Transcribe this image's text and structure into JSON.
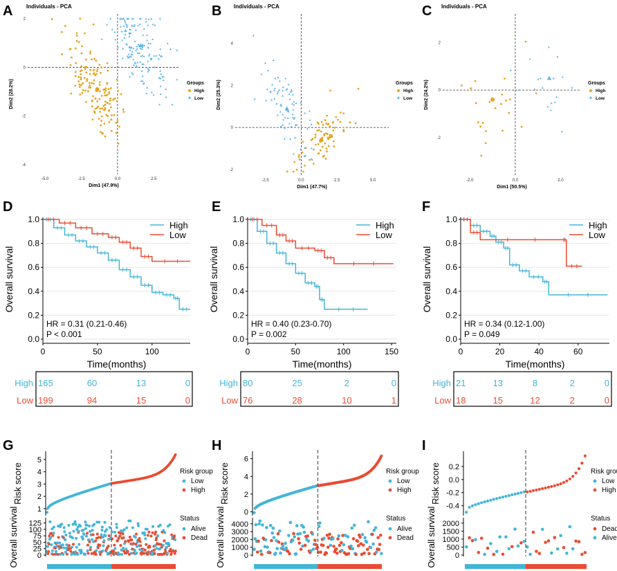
{
  "colors": {
    "high": "#EB4B32",
    "low": "#43B5D8",
    "pca_high": "#E8A21F",
    "pca_low": "#5BB5E5",
    "grid": "#E6E6E6",
    "dash": "#555555"
  },
  "pca": [
    {
      "panel": "A",
      "title": "Individuals - PCA",
      "xlabel": "Dim1 (47.9%)",
      "ylabel": "Dim2 (28.2%)",
      "xticks": [
        -5.0,
        -2.5,
        0.0,
        2.5
      ],
      "yticks": [
        2,
        0,
        -2,
        -4
      ],
      "xlim": [
        -6.2,
        4.3
      ],
      "ylim": [
        -4.4,
        2.2
      ],
      "legend_title": "Groups",
      "legend": [
        "High",
        "Low"
      ],
      "groups": [
        {
          "name": "High",
          "n": 160,
          "center": [
            -1.4,
            -0.9
          ],
          "cov": [
            [
              1.0,
              -0.75
            ],
            [
              -0.75,
              1.15
            ]
          ]
        },
        {
          "name": "Low",
          "n": 160,
          "center": [
            1.6,
            0.9
          ],
          "cov": [
            [
              0.9,
              -0.45
            ],
            [
              -0.45,
              0.85
            ]
          ]
        }
      ]
    },
    {
      "panel": "B",
      "title": "Individuals - PCA",
      "xlabel": "Dim1 (47.7%)",
      "ylabel": "Dim2 (25.3%)",
      "xticks": [
        -2.5,
        0.0,
        2.5,
        5.0
      ],
      "yticks": [
        4,
        2,
        0,
        -2
      ],
      "xlim": [
        -4.6,
        6.1
      ],
      "ylim": [
        -2.3,
        5.4
      ],
      "legend_title": "Groups",
      "legend": [
        "High",
        "Low"
      ],
      "groups": [
        {
          "name": "High",
          "n": 80,
          "center": [
            1.4,
            -0.6
          ],
          "cov": [
            [
              0.8,
              0.42
            ],
            [
              0.42,
              0.55
            ]
          ]
        },
        {
          "name": "Low",
          "n": 80,
          "center": [
            -1.0,
            0.9
          ],
          "cov": [
            [
              0.7,
              -0.6
            ],
            [
              -0.6,
              1.3
            ]
          ]
        }
      ]
    },
    {
      "panel": "C",
      "title": "Individuals - PCA",
      "xlabel": "Dim1 (50.5%)",
      "ylabel": "Dim2 (24.2%)",
      "xticks": [
        -2,
        0,
        2
      ],
      "yticks": [
        2,
        0,
        -2
      ],
      "xlim": [
        -3.2,
        2.9
      ],
      "ylim": [
        -3.6,
        3.2
      ],
      "legend_title": "Groups",
      "legend": [
        "High",
        "Low"
      ],
      "groups": [
        {
          "name": "High",
          "n": 22,
          "center": [
            -1.0,
            -0.4
          ],
          "cov": [
            [
              0.9,
              -0.15
            ],
            [
              -0.15,
              0.75
            ]
          ]
        },
        {
          "name": "Low",
          "n": 18,
          "center": [
            1.5,
            0.5
          ],
          "cov": [
            [
              0.35,
              0.05
            ],
            [
              0.05,
              1.2
            ]
          ]
        }
      ]
    }
  ],
  "km": [
    {
      "panel": "D",
      "ylabel": "Overall survival",
      "xlabel": "Time(months)",
      "xticks": [
        0,
        50,
        100
      ],
      "xmax": 135,
      "yticks": [
        "0.0",
        "0.2",
        "0.4",
        "0.6",
        "0.8",
        "1.0"
      ],
      "legend": [
        "High",
        "Low"
      ],
      "hr": "HR = 0.31 (0.21-0.46)",
      "p": "P < 0.001",
      "high": [
        [
          0,
          1.0
        ],
        [
          10,
          0.93
        ],
        [
          20,
          0.87
        ],
        [
          30,
          0.82
        ],
        [
          40,
          0.77
        ],
        [
          50,
          0.72
        ],
        [
          60,
          0.66
        ],
        [
          70,
          0.58
        ],
        [
          80,
          0.52
        ],
        [
          90,
          0.45
        ],
        [
          100,
          0.39
        ],
        [
          110,
          0.37
        ],
        [
          120,
          0.34
        ],
        [
          125,
          0.25
        ],
        [
          135,
          0.25
        ]
      ],
      "low": [
        [
          0,
          1.0
        ],
        [
          15,
          0.97
        ],
        [
          30,
          0.93
        ],
        [
          45,
          0.88
        ],
        [
          60,
          0.85
        ],
        [
          70,
          0.81
        ],
        [
          80,
          0.76
        ],
        [
          90,
          0.69
        ],
        [
          100,
          0.65
        ],
        [
          135,
          0.65
        ]
      ],
      "risk_table": {
        "rows": [
          "High",
          "Low"
        ],
        "high": [
          "165",
          "60",
          "13",
          "0"
        ],
        "low": [
          "199",
          "94",
          "15",
          "0"
        ]
      }
    },
    {
      "panel": "E",
      "ylabel": "Overall survival",
      "xlabel": "Time(months)",
      "xticks": [
        0,
        50,
        100,
        150
      ],
      "xmax": 155,
      "yticks": [
        "0.0",
        "0.2",
        "0.4",
        "0.6",
        "0.8",
        "1.0"
      ],
      "legend": [
        "High",
        "Low"
      ],
      "hr": "HR = 0.40 (0.23-0.70)",
      "p": "P = 0.002",
      "high": [
        [
          0,
          1.0
        ],
        [
          10,
          0.9
        ],
        [
          20,
          0.8
        ],
        [
          30,
          0.72
        ],
        [
          40,
          0.63
        ],
        [
          50,
          0.55
        ],
        [
          60,
          0.47
        ],
        [
          70,
          0.44
        ],
        [
          75,
          0.33
        ],
        [
          80,
          0.25
        ],
        [
          125,
          0.25
        ]
      ],
      "low": [
        [
          0,
          1.0
        ],
        [
          15,
          0.95
        ],
        [
          30,
          0.87
        ],
        [
          40,
          0.82
        ],
        [
          50,
          0.76
        ],
        [
          70,
          0.74
        ],
        [
          80,
          0.68
        ],
        [
          90,
          0.63
        ],
        [
          152,
          0.63
        ]
      ],
      "risk_table": {
        "rows": [
          "High",
          "Low"
        ],
        "high": [
          "80",
          "25",
          "2",
          "0"
        ],
        "low": [
          "76",
          "28",
          "10",
          "1"
        ]
      }
    },
    {
      "panel": "F",
      "ylabel": "Overall survival",
      "xlabel": "Time(months)",
      "xticks": [
        0,
        20,
        40,
        60
      ],
      "xmax": 76,
      "yticks": [
        "0.0",
        "0.2",
        "0.4",
        "0.6",
        "0.8",
        "1.0"
      ],
      "legend": [
        "High",
        "Low"
      ],
      "hr": "HR = 0.34 (0.12-1.00)",
      "p": "P = 0.049",
      "high": [
        [
          0,
          1.0
        ],
        [
          5,
          0.95
        ],
        [
          10,
          0.9
        ],
        [
          15,
          0.86
        ],
        [
          18,
          0.81
        ],
        [
          22,
          0.76
        ],
        [
          25,
          0.62
        ],
        [
          30,
          0.57
        ],
        [
          35,
          0.52
        ],
        [
          42,
          0.48
        ],
        [
          45,
          0.37
        ],
        [
          75,
          0.37
        ]
      ],
      "low": [
        [
          0,
          1.0
        ],
        [
          5,
          0.89
        ],
        [
          10,
          0.83
        ],
        [
          52,
          0.83
        ],
        [
          54,
          0.61
        ],
        [
          62,
          0.61
        ]
      ],
      "risk_table": {
        "rows": [
          "High",
          "Low"
        ],
        "high": [
          "21",
          "13",
          "8",
          "2",
          "0"
        ],
        "low": [
          "18",
          "15",
          "12",
          "2",
          "0"
        ]
      }
    }
  ],
  "risk": [
    {
      "panel": "G",
      "n_low": 182,
      "n_high": 182,
      "score_ylabel": "Risk score",
      "score_yticks": [
        1,
        2,
        3,
        4,
        5
      ],
      "score_ylim": [
        0.6,
        5.5
      ],
      "score_curve": {
        "start": 0.7,
        "low_end": 3.05,
        "high_end": 5.4
      },
      "legend1_title": "Risk group",
      "legend1": [
        "Low",
        "High"
      ],
      "surv_ylabel": "Overall survival",
      "surv_yticks": [
        0,
        25,
        50,
        75,
        100,
        125
      ],
      "surv_ymax": 140,
      "legend2_title": "Status",
      "legend2": [
        "Alive",
        "Dead"
      ]
    },
    {
      "panel": "H",
      "n_low": 78,
      "n_high": 78,
      "score_ylabel": "Risk score",
      "score_yticks": [
        0,
        2,
        4,
        6
      ],
      "score_ylim": [
        -0.2,
        6.6
      ],
      "score_curve": {
        "start": -0.1,
        "low_end": 2.95,
        "high_end": 6.3
      },
      "legend1_title": "Risk group",
      "legend1": [
        "Low",
        "High"
      ],
      "surv_ylabel": "Overall survival",
      "surv_yticks": [
        0,
        1000,
        2000,
        3000,
        4000
      ],
      "surv_ymax": 4600,
      "legend2_title": "Status",
      "legend2": [
        "Alive",
        "Dead"
      ]
    },
    {
      "panel": "I",
      "n_low": 20,
      "n_high": 20,
      "score_ylabel": "Risk score",
      "score_yticks": [
        -0.4,
        -0.2,
        0.0,
        0.2
      ],
      "score_ylim": [
        -0.52,
        0.4
      ],
      "score_curve": {
        "start": -0.5,
        "low_end": -0.19,
        "high_end": 0.36
      },
      "legend1_title": "Risk group",
      "legend1": [
        "Low",
        "High"
      ],
      "surv_ylabel": "Overall survival",
      "surv_yticks": [
        0,
        500,
        1000,
        1500,
        2000
      ],
      "surv_ymax": 2250,
      "legend2_title": "Status",
      "legend2": [
        "Dead",
        "Alive"
      ]
    }
  ],
  "chart_data": [
    {
      "type": "scatter",
      "panel": "A",
      "title": "Individuals - PCA",
      "xlabel": "Dim1 (47.9%)",
      "ylabel": "Dim2 (28.2%)",
      "series": [
        "High",
        "Low"
      ]
    },
    {
      "type": "scatter",
      "panel": "B",
      "title": "Individuals - PCA",
      "xlabel": "Dim1 (47.7%)",
      "ylabel": "Dim2 (25.3%)",
      "series": [
        "High",
        "Low"
      ]
    },
    {
      "type": "scatter",
      "panel": "C",
      "title": "Individuals - PCA",
      "xlabel": "Dim1 (50.5%)",
      "ylabel": "Dim2 (24.2%)",
      "series": [
        "High",
        "Low"
      ]
    },
    {
      "type": "line",
      "panel": "D",
      "xlabel": "Time(months)",
      "ylabel": "Overall survival",
      "series": [
        "High",
        "Low"
      ],
      "annotation": "HR = 0.31 (0.21-0.46), P < 0.001"
    },
    {
      "type": "line",
      "panel": "E",
      "xlabel": "Time(months)",
      "ylabel": "Overall survival",
      "series": [
        "High",
        "Low"
      ],
      "annotation": "HR = 0.40 (0.23-0.70), P = 0.002"
    },
    {
      "type": "line",
      "panel": "F",
      "xlabel": "Time(months)",
      "ylabel": "Overall survival",
      "series": [
        "High",
        "Low"
      ],
      "annotation": "HR = 0.34 (0.12-1.00), P = 0.049"
    },
    {
      "type": "scatter",
      "panel": "G",
      "ylabel": [
        "Risk score",
        "Overall survival"
      ],
      "series": [
        "Low",
        "High",
        "Alive",
        "Dead"
      ]
    },
    {
      "type": "scatter",
      "panel": "H",
      "ylabel": [
        "Risk score",
        "Overall survival"
      ],
      "series": [
        "Low",
        "High",
        "Alive",
        "Dead"
      ]
    },
    {
      "type": "scatter",
      "panel": "I",
      "ylabel": [
        "Risk score",
        "Overall survival"
      ],
      "series": [
        "Low",
        "High",
        "Dead",
        "Alive"
      ]
    }
  ]
}
